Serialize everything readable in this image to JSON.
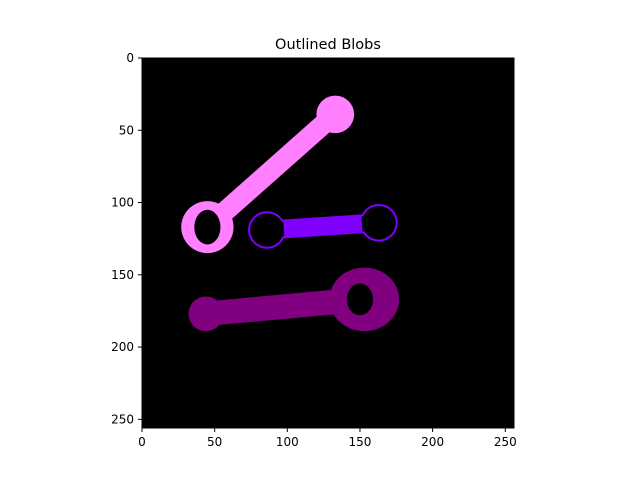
{
  "chart_data": {
    "type": "image",
    "title": "Outlined Blobs",
    "xlim": [
      0,
      256
    ],
    "ylim": [
      256,
      0
    ],
    "xticks": [
      0,
      50,
      100,
      150,
      200,
      250
    ],
    "yticks": [
      0,
      50,
      100,
      150,
      200,
      250
    ],
    "background_color": "#000000",
    "blobs": [
      {
        "color": "#ff80ff",
        "style": "filled",
        "head": {
          "cx": 45,
          "cy": 117,
          "r": 18
        },
        "hole": {
          "cx": 45,
          "cy": 117,
          "rx": 9,
          "ry": 12
        },
        "shaft": {
          "from": [
            45,
            117
          ],
          "to": [
            128,
            43
          ],
          "width": 14
        },
        "end": {
          "cx": 133,
          "cy": 39,
          "r": 13
        }
      },
      {
        "color": "#8000ff",
        "style": "outlined",
        "head": {
          "cx": 86,
          "cy": 119,
          "r": 13
        },
        "hole": {
          "cx": 86,
          "cy": 119,
          "rx": 9,
          "ry": 11
        },
        "shaft": {
          "from": [
            86,
            119
          ],
          "to": [
            163,
            114
          ],
          "width": 13
        },
        "end": {
          "cx": 163,
          "cy": 114,
          "r": 13
        }
      },
      {
        "color": "#800080",
        "style": "filled",
        "head": {
          "cx": 44,
          "cy": 177,
          "r": 12
        },
        "hole": null,
        "shaft": {
          "from": [
            44,
            177
          ],
          "to": [
            152,
            167
          ],
          "width": 17
        },
        "end": {
          "cx": 153,
          "cy": 167,
          "rx": 24,
          "ry": 22
        },
        "end_hole": {
          "cx": 150,
          "cy": 167,
          "rx": 9,
          "ry": 11
        }
      }
    ]
  }
}
